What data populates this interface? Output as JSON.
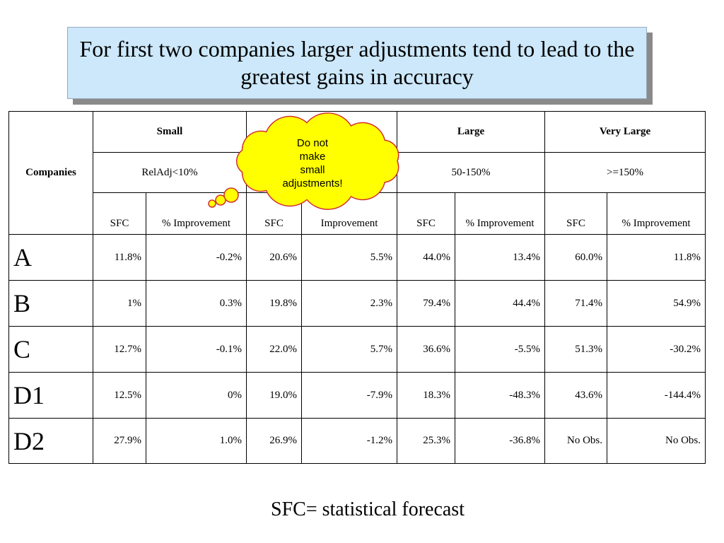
{
  "title": "For first two companies larger adjustments tend to lead to the greatest gains in accuracy",
  "cloud": {
    "lines": [
      "Do not",
      "make",
      "small",
      "adjustments!"
    ]
  },
  "table": {
    "corner": "Companies",
    "groups": [
      {
        "name": "Small",
        "range": "RelAdj<10%"
      },
      null,
      {
        "name": "Large",
        "range": "50-150%"
      },
      {
        "name": "Very Large",
        "range": ">=150%"
      }
    ],
    "subheaders": [
      "SFC",
      "% Improvement",
      "SFC",
      "Improvement",
      "SFC",
      "% Improvement",
      "SFC",
      "% Improvement"
    ],
    "rows": [
      {
        "company": "A",
        "cells": [
          "11.8%",
          "-0.2%",
          "20.6%",
          "5.5%",
          "44.0%",
          "13.4%",
          "60.0%",
          "11.8%"
        ]
      },
      {
        "company": "B",
        "cells": [
          "1%",
          "0.3%",
          "19.8%",
          "2.3%",
          "79.4%",
          "44.4%",
          "71.4%",
          "54.9%"
        ]
      },
      {
        "company": "C",
        "cells": [
          "12.7%",
          "-0.1%",
          "22.0%",
          "5.7%",
          "36.6%",
          "-5.5%",
          "51.3%",
          "-30.2%"
        ]
      },
      {
        "company": "D1",
        "cells": [
          "12.5%",
          "0%",
          "19.0%",
          "-7.9%",
          "18.3%",
          "-48.3%",
          "43.6%",
          "-144.4%"
        ]
      },
      {
        "company": "D2",
        "cells": [
          "27.9%",
          "1.0%",
          "26.9%",
          "-1.2%",
          "25.3%",
          "-36.8%",
          "No Obs.",
          "No Obs."
        ]
      }
    ]
  },
  "footer": "SFC= statistical forecast"
}
